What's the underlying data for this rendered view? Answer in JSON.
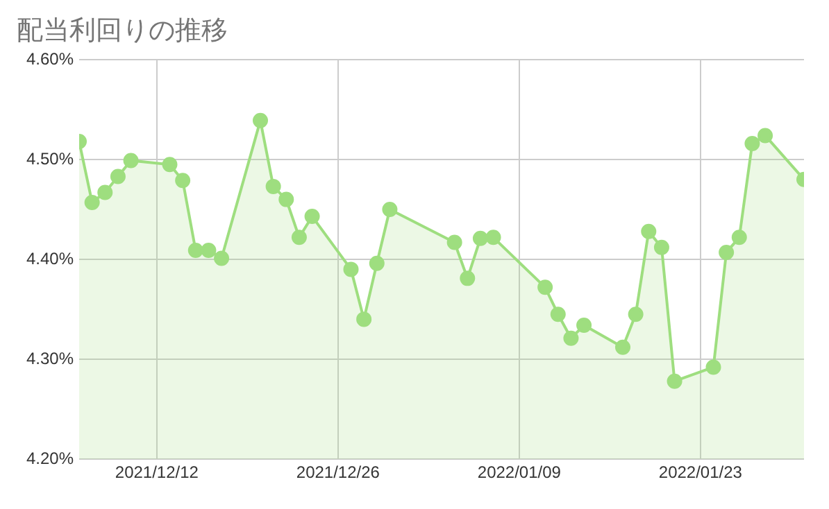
{
  "chart_data": {
    "type": "area",
    "title": "配当利回りの推移",
    "x": [
      "2021-12-06",
      "2021-12-07",
      "2021-12-08",
      "2021-12-09",
      "2021-12-10",
      "2021-12-13",
      "2021-12-14",
      "2021-12-15",
      "2021-12-16",
      "2021-12-17",
      "2021-12-20",
      "2021-12-21",
      "2021-12-22",
      "2021-12-23",
      "2021-12-24",
      "2021-12-27",
      "2021-12-28",
      "2021-12-29",
      "2021-12-30",
      "2022-01-04",
      "2022-01-05",
      "2022-01-06",
      "2022-01-07",
      "2022-01-11",
      "2022-01-12",
      "2022-01-13",
      "2022-01-14",
      "2022-01-17",
      "2022-01-18",
      "2022-01-19",
      "2022-01-20",
      "2022-01-21",
      "2022-01-24",
      "2022-01-25",
      "2022-01-26",
      "2022-01-27",
      "2022-01-28",
      "2022-01-31"
    ],
    "series": [
      {
        "color": "#9ede7f",
        "values": [
          4.518,
          4.457,
          4.467,
          4.483,
          4.499,
          4.495,
          4.479,
          4.409,
          4.409,
          4.401,
          4.539,
          4.473,
          4.46,
          4.422,
          4.443,
          4.39,
          4.34,
          4.396,
          4.45,
          4.417,
          4.381,
          4.421,
          4.422,
          4.372,
          4.345,
          4.321,
          4.334,
          4.312,
          4.345,
          4.428,
          4.412,
          4.278,
          4.292,
          4.407,
          4.422,
          4.516,
          4.524,
          4.48
        ]
      }
    ],
    "xlim": [
      "2021-12-06",
      "2022-01-31"
    ],
    "xticks": [
      {
        "value": "2021-12-12",
        "label": "2021/12/12"
      },
      {
        "value": "2021-12-26",
        "label": "2021/12/26"
      },
      {
        "value": "2022-01-09",
        "label": "2022/01/09"
      },
      {
        "value": "2022-01-23",
        "label": "2022/01/23"
      }
    ],
    "ylim": [
      4.2,
      4.6
    ],
    "yticks": [
      {
        "value": 4.2,
        "label": "4.20%"
      },
      {
        "value": 4.3,
        "label": "4.30%"
      },
      {
        "value": 4.4,
        "label": "4.40%"
      },
      {
        "value": 4.5,
        "label": "4.50%"
      },
      {
        "value": 4.6,
        "label": "4.60%"
      }
    ],
    "grid": true,
    "legend": false,
    "marker": "circle",
    "line_style": "solid"
  }
}
